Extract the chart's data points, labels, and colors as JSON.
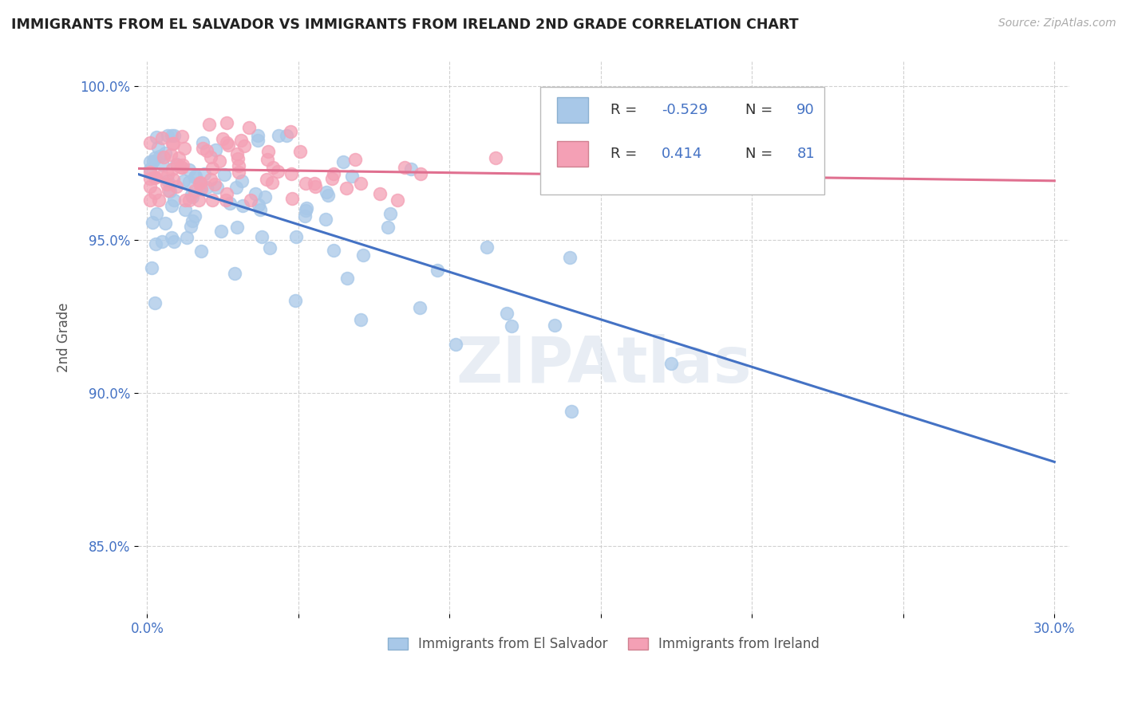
{
  "title": "IMMIGRANTS FROM EL SALVADOR VS IMMIGRANTS FROM IRELAND 2ND GRADE CORRELATION CHART",
  "source": "Source: ZipAtlas.com",
  "ylabel": "2nd Grade",
  "ymin": 0.828,
  "ymax": 1.008,
  "xmin": -0.003,
  "xmax": 0.305,
  "yticks": [
    0.85,
    0.9,
    0.95,
    1.0
  ],
  "ytick_labels": [
    "85.0%",
    "90.0%",
    "95.0%",
    "100.0%"
  ],
  "xticks": [
    0.0,
    0.05,
    0.1,
    0.15,
    0.2,
    0.25,
    0.3
  ],
  "xtick_labels": [
    "0.0%",
    "",
    "",
    "",
    "",
    "",
    "30.0%"
  ],
  "blue_color": "#a8c8e8",
  "pink_color": "#f4a0b5",
  "blue_line_color": "#4472c4",
  "pink_line_color": "#e07090",
  "r_value_color": "#4472c4",
  "watermark": "ZIPAtlas",
  "blue_label": "Immigrants from El Salvador",
  "pink_label": "Immigrants from Ireland",
  "legend_r1": "-0.529",
  "legend_n1": "90",
  "legend_r2": "0.414",
  "legend_n2": "81"
}
